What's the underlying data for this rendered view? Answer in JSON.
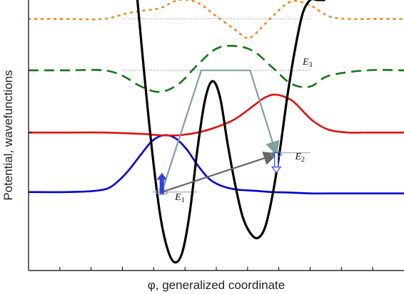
{
  "chart_data": {
    "type": "line",
    "title": "",
    "xlabel": "φ,  generalized coordinate",
    "ylabel": "Potential, wavefunctions",
    "xlim": [
      0,
      10
    ],
    "ylim": [
      0,
      10
    ],
    "grid": false,
    "legend": "none",
    "potential": {
      "color": "#000000",
      "x": [
        2.9,
        3.1,
        3.3,
        3.5,
        3.7,
        3.9,
        4.1,
        4.3,
        4.5,
        4.7,
        4.9,
        5.1,
        5.3,
        5.5,
        5.7,
        5.9,
        6.1,
        6.3,
        6.5,
        6.7,
        6.9,
        7.1,
        7.3,
        7.5,
        7.7,
        7.9
      ],
      "y": [
        10.0,
        7.0,
        4.3,
        2.1,
        0.8,
        0.3,
        0.7,
        2.2,
        4.5,
        6.3,
        7.0,
        6.4,
        4.7,
        3.2,
        2.0,
        1.4,
        1.2,
        1.6,
        2.8,
        4.5,
        6.5,
        8.2,
        9.5,
        10.0,
        10.0,
        10.0
      ]
    },
    "series": [
      {
        "color": "#0000cc",
        "style": "solid",
        "baseline": 2.9,
        "x": [
          0.0,
          1.0,
          1.8,
          2.2,
          2.6,
          3.0,
          3.3,
          3.6,
          3.9,
          4.2,
          4.5,
          4.8,
          5.1,
          5.5,
          6.0,
          6.5,
          7.0,
          7.5,
          8.0,
          9.0,
          10.0
        ],
        "y": [
          2.9,
          2.9,
          2.95,
          3.1,
          3.6,
          4.3,
          4.8,
          5.0,
          4.9,
          4.5,
          3.9,
          3.4,
          3.15,
          3.0,
          2.95,
          2.9,
          2.88,
          2.85,
          2.85,
          2.85,
          2.85
        ]
      },
      {
        "color": "#dd1111",
        "style": "solid",
        "baseline": 5.1,
        "x": [
          0.0,
          1.0,
          2.0,
          3.0,
          3.5,
          4.0,
          4.5,
          5.0,
          5.5,
          6.0,
          6.3,
          6.6,
          7.0,
          7.3,
          7.6,
          8.0,
          8.5,
          9.0,
          10.0
        ],
        "y": [
          5.1,
          5.1,
          5.1,
          5.05,
          5.0,
          5.0,
          5.1,
          5.3,
          5.6,
          6.1,
          6.4,
          6.5,
          6.3,
          5.9,
          5.5,
          5.2,
          5.1,
          5.1,
          5.1
        ]
      },
      {
        "color": "#117711",
        "style": "dashed",
        "baseline": 7.4,
        "x": [
          0.0,
          1.0,
          2.0,
          2.5,
          3.0,
          3.5,
          4.0,
          4.5,
          5.0,
          5.5,
          6.0,
          6.5,
          7.0,
          7.5,
          8.0,
          9.0,
          10.0
        ],
        "y": [
          7.4,
          7.4,
          7.4,
          7.2,
          6.8,
          6.6,
          6.9,
          7.6,
          8.2,
          8.3,
          8.1,
          7.5,
          6.9,
          6.8,
          7.2,
          7.4,
          7.4
        ]
      },
      {
        "color": "#ee8822",
        "style": "dotted",
        "baseline": 9.3,
        "x": [
          0.0,
          1.0,
          2.0,
          2.6,
          3.0,
          3.5,
          4.0,
          4.5,
          5.0,
          5.5,
          5.8,
          6.0,
          6.5,
          7.0,
          7.5,
          8.0,
          8.5,
          9.0,
          10.0
        ],
        "y": [
          9.3,
          9.3,
          9.3,
          9.5,
          9.6,
          9.7,
          10.0,
          9.9,
          9.4,
          8.9,
          8.6,
          8.7,
          9.4,
          9.95,
          9.8,
          9.4,
          9.3,
          9.3,
          9.3
        ]
      }
    ],
    "levels": [
      {
        "label": "E",
        "sub": "1",
        "y": 2.9,
        "x_start": 3.3,
        "x_end": 4.5
      },
      {
        "label": "E",
        "sub": "2",
        "y": 4.35,
        "x_start": 6.4,
        "x_end": 7.5
      },
      {
        "label": "E",
        "sub": "3",
        "y": 7.4,
        "x_start": 2.5,
        "x_end": 7.5
      },
      {
        "label": "",
        "sub": "",
        "y": 9.3,
        "x_start": 2.5,
        "x_end": 7.5
      }
    ],
    "transitions": [
      {
        "from": [
          3.55,
          2.9
        ],
        "to": [
          6.6,
          4.3
        ],
        "color": "#666666",
        "kind": "direct"
      },
      {
        "path": [
          [
            3.55,
            2.9
          ],
          [
            4.6,
            7.4
          ],
          [
            5.9,
            7.4
          ],
          [
            6.6,
            4.3
          ]
        ],
        "color": "#7f9fa0",
        "kind": "via-level"
      }
    ],
    "spins": [
      {
        "x": 3.55,
        "y": 2.9,
        "direction": "up",
        "color": "#3344dd"
      },
      {
        "x": 6.6,
        "y": 4.3,
        "direction": "down",
        "color": "#3344dd"
      }
    ],
    "x_minor_ticks": 12
  }
}
